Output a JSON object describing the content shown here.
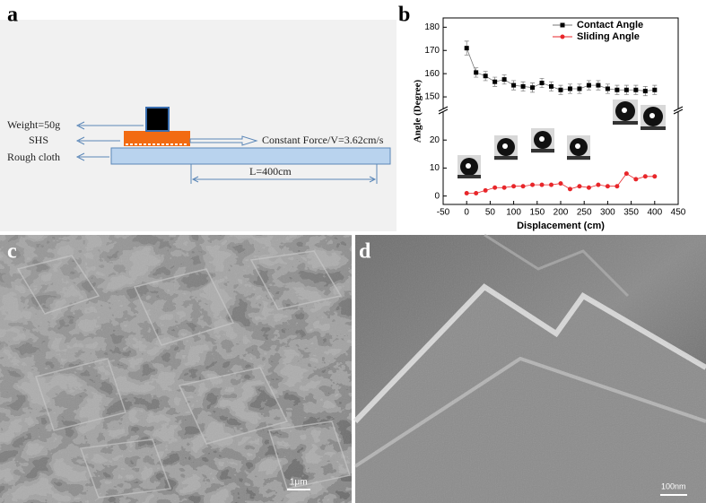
{
  "labels": [
    "a",
    "b",
    "c",
    "d"
  ],
  "diagram": {
    "weight": "Weight=50g",
    "sample": "SHS",
    "substrate": "Rough cloth",
    "force": "Constant Force/V=3.62cm/s",
    "length": "L=400cm"
  },
  "scale_bars": [
    "1μm",
    "100nm"
  ],
  "chart_data": {
    "type": "line",
    "xlabel": "Displacement (cm)",
    "ylabel": "Angle (Degree)",
    "x": [
      0,
      20,
      40,
      60,
      80,
      100,
      120,
      140,
      160,
      180,
      200,
      220,
      240,
      260,
      280,
      300,
      320,
      340,
      360,
      380,
      400
    ],
    "xlim": [
      -50,
      450
    ],
    "xticks": [
      -50,
      0,
      50,
      100,
      150,
      200,
      250,
      300,
      350,
      400,
      450
    ],
    "ylim": [
      -3,
      30
    ],
    "yticks": [
      0,
      10,
      20
    ],
    "ylim_upper": [
      145,
      184
    ],
    "yticks_upper": [
      150,
      160,
      170,
      180
    ],
    "legend": "upper right",
    "series": [
      {
        "name": "Contact Angle",
        "color": "#000000",
        "axis": "upper",
        "values": [
          171,
          160.5,
          159,
          156.5,
          157.5,
          155,
          154.5,
          154,
          156,
          154.5,
          153,
          153.5,
          153.5,
          155,
          155,
          153.5,
          153,
          153,
          153,
          152.5,
          153
        ],
        "errors": [
          3,
          2,
          2,
          2,
          2,
          2,
          2,
          2,
          2,
          2,
          2,
          2,
          2,
          2,
          2,
          2,
          2,
          2,
          2,
          2,
          2
        ]
      },
      {
        "name": "Sliding Angle",
        "color": "#e8262a",
        "axis": "lower",
        "values": [
          1,
          1,
          2,
          3,
          3,
          3.5,
          3.5,
          4,
          4,
          4,
          4.5,
          2.5,
          3.5,
          3,
          4,
          3.5,
          3.5,
          8,
          6,
          7,
          7
        ]
      }
    ]
  }
}
